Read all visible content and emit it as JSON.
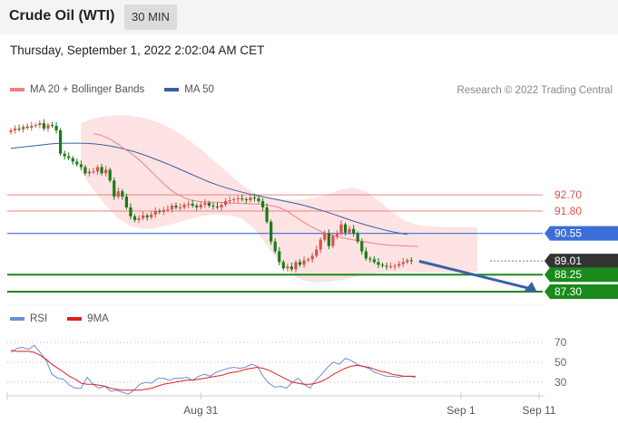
{
  "header": {
    "title": "Crude Oil (WTI)",
    "timeframe_label": "30 MIN"
  },
  "timestamp": "Thursday, September 1, 2022 2:02:04 AM CET",
  "credit": "Research © 2022 Trading Central",
  "colors": {
    "ma20": "#f08080",
    "ma50": "#3a5fa8",
    "bands_fill": "#fde3e3",
    "candle_up": "#d9534f",
    "candle_down": "#1a7a1a",
    "resistance": "#f08080",
    "pivot": "#3a6fd8",
    "support": "#1a8a1a",
    "last_price_bg": "#333333",
    "rsi": "#6a8fd8",
    "rsi_ma": "#e02020",
    "arrow": "#3a5fa8"
  },
  "chart_data": [
    {
      "type": "candlestick",
      "legend": [
        {
          "name": "MA 20 + Bollinger Bands",
          "color": "#f08080"
        },
        {
          "name": "MA 50",
          "color": "#3a5fa8"
        }
      ],
      "levels": [
        {
          "value": 92.7,
          "label": "92.70",
          "kind": "resistance"
        },
        {
          "value": 91.8,
          "label": "91.80",
          "kind": "resistance"
        },
        {
          "value": 90.55,
          "label": "90.55",
          "kind": "pivot"
        },
        {
          "value": 89.01,
          "label": "89.01",
          "kind": "last"
        },
        {
          "value": 88.25,
          "label": "88.25",
          "kind": "support"
        },
        {
          "value": 87.3,
          "label": "87.30",
          "kind": "support"
        }
      ],
      "closes": [
        96.3,
        96.4,
        96.35,
        96.5,
        96.45,
        96.55,
        96.6,
        96.7,
        96.4,
        96.6,
        96.55,
        96.3,
        95.0,
        94.85,
        94.75,
        94.55,
        94.4,
        94.25,
        93.9,
        94.0,
        94.0,
        94.25,
        93.9,
        94.1,
        93.5,
        92.6,
        92.9,
        92.6,
        92.0,
        91.5,
        91.3,
        91.4,
        91.55,
        91.45,
        91.6,
        91.8,
        91.75,
        91.85,
        91.9,
        92.1,
        92.0,
        92.0,
        92.15,
        92.2,
        92.1,
        92.0,
        92.15,
        92.25,
        92.1,
        92.05,
        92.0,
        92.15,
        92.35,
        92.4,
        92.45,
        92.5,
        92.45,
        92.4,
        92.55,
        92.5,
        92.35,
        92.0,
        91.2,
        90.1,
        89.55,
        88.95,
        88.6,
        88.7,
        88.55,
        88.95,
        88.8,
        89.05,
        89.1,
        89.3,
        89.65,
        90.2,
        90.55,
        89.85,
        90.4,
        90.55,
        91.05,
        90.6,
        90.8,
        90.55,
        90.1,
        89.55,
        89.15,
        89.1,
        88.95,
        88.8,
        88.75,
        88.7,
        88.7,
        88.75,
        88.85,
        88.95,
        89.05,
        89.01
      ],
      "ma20": [
        96.1,
        96.08,
        96.0,
        95.9,
        95.8,
        95.65,
        95.5,
        95.33,
        95.16,
        95.0,
        94.82,
        94.62,
        94.4,
        94.17,
        93.93,
        93.7,
        93.47,
        93.25,
        93.05,
        92.87,
        92.72,
        92.6,
        92.5,
        92.42,
        92.37,
        92.33,
        92.31,
        92.3,
        92.29,
        92.29,
        92.28,
        92.27,
        92.25,
        92.24,
        92.23,
        92.22,
        92.21,
        92.2,
        92.19,
        92.18,
        92.16,
        92.14,
        92.1,
        92.06,
        92.0,
        91.9,
        91.78,
        91.63,
        91.47,
        91.31,
        91.16,
        91.02,
        90.89,
        90.77,
        90.66,
        90.57,
        90.49,
        90.42,
        90.36,
        90.31,
        90.26,
        90.22,
        90.18,
        90.14,
        90.1,
        90.06,
        90.02,
        89.98,
        89.95,
        89.92,
        89.9,
        89.88,
        89.87,
        89.86,
        89.85,
        89.84,
        89.83,
        89.82
      ],
      "ma20_start_index": 20,
      "upper_band": [
        96.7,
        96.95,
        97.1,
        97.15,
        97.12,
        97.0,
        96.8,
        96.5,
        96.1,
        95.6,
        95.05,
        94.45,
        93.85,
        93.25,
        92.8,
        92.55,
        92.45,
        92.42,
        92.45,
        92.55,
        92.75,
        93.0,
        93.1,
        92.9,
        92.4,
        91.8,
        91.3,
        91.05,
        90.95,
        90.92,
        90.9,
        90.9,
        90.9
      ],
      "lower_band": [
        94.0,
        93.0,
        92.1,
        91.4,
        90.95,
        90.8,
        90.85,
        91.0,
        91.2,
        91.4,
        91.55,
        91.6,
        91.55,
        91.35,
        90.8,
        89.9,
        88.9,
        88.25,
        87.9,
        87.8,
        87.85,
        87.95,
        88.1,
        88.25,
        88.35,
        88.4,
        88.4,
        88.4,
        88.4,
        88.4,
        88.4,
        88.4,
        88.4
      ],
      "band_x_step": 3,
      "band_start_index": 0,
      "ma50": [
        95.3,
        95.35,
        95.4,
        95.45,
        95.5,
        95.55,
        95.57,
        95.58,
        95.58,
        95.57,
        95.55,
        95.5,
        95.43,
        95.34,
        95.23,
        95.1,
        94.95,
        94.78,
        94.6,
        94.42,
        94.22,
        94.02,
        93.82,
        93.62,
        93.42,
        93.25,
        93.1,
        92.97,
        92.85,
        92.74,
        92.64,
        92.55,
        92.46,
        92.37,
        92.27,
        92.17,
        92.05,
        91.92,
        91.78,
        91.63,
        91.47,
        91.31,
        91.16,
        91.02,
        90.89,
        90.77,
        90.66,
        90.57,
        90.49
      ],
      "ma50_x_step": 2,
      "xticks": [
        {
          "label": "Aug 31",
          "index": 46
        },
        {
          "label": "Sep 1",
          "index": 109
        },
        {
          "label": "Sep 11",
          "index": 128
        }
      ],
      "projection": {
        "from": 89.1,
        "to": 87.45
      }
    },
    {
      "type": "line",
      "legend": [
        {
          "name": "RSI",
          "color": "#6a8fd8"
        },
        {
          "name": "9MA",
          "color": "#e02020"
        }
      ],
      "ylim": [
        0,
        100
      ],
      "yticks": [
        70,
        50,
        30
      ],
      "rsi": [
        60,
        64,
        65,
        63,
        67,
        60,
        52,
        38,
        34,
        33,
        27,
        24,
        24,
        35,
        28,
        24,
        26,
        21,
        22,
        20,
        18,
        22,
        28,
        30,
        29,
        34,
        34,
        32,
        34,
        34,
        35,
        32,
        36,
        38,
        36,
        40,
        42,
        44,
        45,
        44,
        45,
        48,
        46,
        36,
        29,
        25,
        26,
        24,
        30,
        34,
        28,
        24,
        32,
        38,
        45,
        50,
        48,
        54,
        52,
        48,
        46,
        44,
        40,
        38,
        36,
        36,
        35,
        36,
        36,
        35
      ],
      "rsi_ma": [
        62,
        61,
        61,
        61,
        60,
        57,
        53,
        48,
        44,
        40,
        36,
        33,
        29,
        28,
        28,
        27,
        26,
        24,
        23,
        22,
        22,
        22,
        22,
        23,
        24,
        26,
        28,
        29,
        30,
        31,
        32,
        32,
        33,
        34,
        35,
        36,
        37,
        39,
        40,
        41,
        43,
        44,
        45,
        44,
        42,
        39,
        36,
        33,
        30,
        29,
        28,
        28,
        29,
        31,
        34,
        38,
        41,
        44,
        46,
        47,
        46,
        45,
        43,
        41,
        40,
        38,
        37,
        36,
        36,
        36
      ]
    }
  ]
}
